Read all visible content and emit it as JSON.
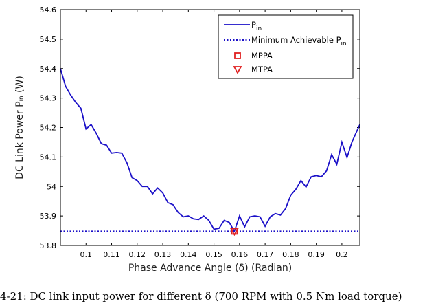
{
  "caption": "4-21: DC link input power for different δ (700 RPM with 0.5 Nm load torque)",
  "chart_data": {
    "type": "line",
    "title": "",
    "xlabel": "Phase Advance Angle (δ) (Radian)",
    "ylabel": "DC Link Power Pᵢₙ (W)",
    "xlim": [
      0.09,
      0.207
    ],
    "ylim": [
      53.8,
      54.6
    ],
    "xticks": [
      0.1,
      0.11,
      0.12,
      0.13,
      0.14,
      0.15,
      0.16,
      0.17,
      0.18,
      0.19,
      0.2
    ],
    "xtick_labels": [
      "0.1",
      "0.11",
      "0.12",
      "0.13",
      "0.14",
      "0.15",
      "0.16",
      "0.17",
      "0.18",
      "0.19",
      "0.2"
    ],
    "yticks": [
      53.8,
      53.9,
      54,
      54.1,
      54.2,
      54.3,
      54.4,
      54.5,
      54.6
    ],
    "ytick_labels": [
      "53.8",
      "53.9",
      "54",
      "54.1",
      "54.2",
      "54.3",
      "54.4",
      "54.5",
      "54.6"
    ],
    "grid": false,
    "legend": "top-right",
    "series": [
      {
        "name": "P_in",
        "color": "#1a0fc8",
        "style": "solid",
        "x": [
          0.09,
          0.092,
          0.094,
          0.096,
          0.098,
          0.1,
          0.102,
          0.104,
          0.106,
          0.108,
          0.11,
          0.112,
          0.114,
          0.116,
          0.118,
          0.12,
          0.122,
          0.124,
          0.126,
          0.128,
          0.13,
          0.132,
          0.134,
          0.136,
          0.138,
          0.14,
          0.142,
          0.144,
          0.146,
          0.148,
          0.15,
          0.152,
          0.154,
          0.156,
          0.158,
          0.16,
          0.162,
          0.164,
          0.166,
          0.168,
          0.17,
          0.172,
          0.174,
          0.176,
          0.178,
          0.18,
          0.182,
          0.184,
          0.186,
          0.188,
          0.19,
          0.192,
          0.194,
          0.196,
          0.198,
          0.2,
          0.202,
          0.204,
          0.207
        ],
        "values": [
          54.4,
          54.34,
          54.31,
          54.285,
          54.265,
          54.195,
          54.21,
          54.18,
          54.145,
          54.14,
          54.113,
          54.115,
          54.113,
          54.08,
          54.03,
          54.02,
          54.0,
          54.0,
          53.975,
          53.995,
          53.978,
          53.945,
          53.938,
          53.912,
          53.897,
          53.9,
          53.89,
          53.888,
          53.9,
          53.885,
          53.855,
          53.858,
          53.885,
          53.878,
          53.848,
          53.9,
          53.863,
          53.897,
          53.9,
          53.897,
          53.865,
          53.897,
          53.908,
          53.903,
          53.925,
          53.97,
          53.99,
          54.02,
          53.998,
          54.033,
          54.037,
          54.033,
          54.053,
          54.108,
          54.075,
          54.15,
          54.098,
          54.152,
          54.21
        ]
      },
      {
        "name": "Minimum Achievable P_in",
        "color": "#1a0fc8",
        "style": "dotted",
        "x": [
          0.09,
          0.207
        ],
        "values": [
          53.848,
          53.848
        ]
      }
    ],
    "markers": [
      {
        "name": "MPPA",
        "shape": "square",
        "color": "#e02020",
        "x": 0.158,
        "y": 53.848
      },
      {
        "name": "MTPA",
        "shape": "triangle-down",
        "color": "#e02020",
        "x": 0.158,
        "y": 53.848
      }
    ],
    "legend_entries": [
      {
        "label_main": "P",
        "label_sub": "in",
        "kind": "solid"
      },
      {
        "label_main": "Minimum Achievable P",
        "label_sub": "in",
        "kind": "dotted"
      },
      {
        "label_main": "MPPA",
        "label_sub": "",
        "kind": "square"
      },
      {
        "label_main": "MTPA",
        "label_sub": "",
        "kind": "triangle"
      }
    ]
  }
}
